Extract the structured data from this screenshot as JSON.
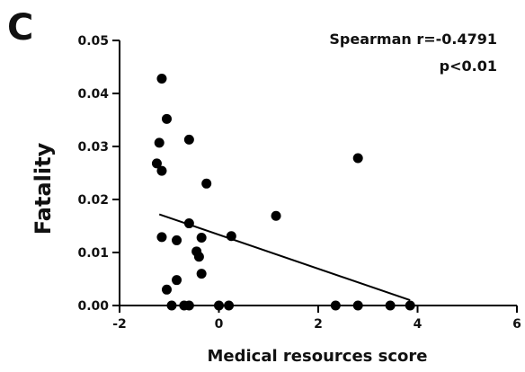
{
  "panel_letter": "C",
  "annotation": {
    "line1": "Spearman r=-0.4791",
    "line2": "p<0.01"
  },
  "chart_data": {
    "type": "scatter",
    "title": "",
    "xlabel": "Medical resources score",
    "ylabel": "Fatality",
    "xlim": [
      -2,
      6
    ],
    "ylim": [
      0,
      0.05
    ],
    "x_ticks": [
      "-2",
      "0",
      "2",
      "4",
      "6"
    ],
    "y_ticks": [
      "0.00",
      "0.01",
      "0.02",
      "0.03",
      "0.04",
      "0.05"
    ],
    "grid": false,
    "points": [
      {
        "x": -1.15,
        "y": 0.0428
      },
      {
        "x": -1.05,
        "y": 0.0352
      },
      {
        "x": -1.2,
        "y": 0.0307
      },
      {
        "x": -1.25,
        "y": 0.0268
      },
      {
        "x": -1.15,
        "y": 0.0254
      },
      {
        "x": -0.6,
        "y": 0.0313
      },
      {
        "x": -0.25,
        "y": 0.023
      },
      {
        "x": 2.8,
        "y": 0.0278
      },
      {
        "x": 1.15,
        "y": 0.0169
      },
      {
        "x": -0.6,
        "y": 0.0155
      },
      {
        "x": 0.25,
        "y": 0.0131
      },
      {
        "x": -1.15,
        "y": 0.0129
      },
      {
        "x": -0.85,
        "y": 0.0123
      },
      {
        "x": -0.35,
        "y": 0.0128
      },
      {
        "x": -0.45,
        "y": 0.0102
      },
      {
        "x": -0.4,
        "y": 0.0092
      },
      {
        "x": -0.35,
        "y": 0.006
      },
      {
        "x": -0.85,
        "y": 0.0048
      },
      {
        "x": -1.05,
        "y": 0.003
      },
      {
        "x": -0.95,
        "y": 0.0
      },
      {
        "x": -0.7,
        "y": 0.0
      },
      {
        "x": -0.6,
        "y": 0.0
      },
      {
        "x": 0.0,
        "y": 0.0
      },
      {
        "x": 0.2,
        "y": 0.0
      },
      {
        "x": 2.35,
        "y": 0.0
      },
      {
        "x": 2.8,
        "y": 0.0
      },
      {
        "x": 3.45,
        "y": 0.0
      },
      {
        "x": 3.85,
        "y": 0.0
      }
    ],
    "regression_line": {
      "x": [
        -1.2,
        3.85
      ],
      "y": [
        0.0172,
        0.001
      ]
    },
    "colors": {
      "points": "#000000",
      "line": "#000000",
      "axes": "#000000"
    }
  }
}
